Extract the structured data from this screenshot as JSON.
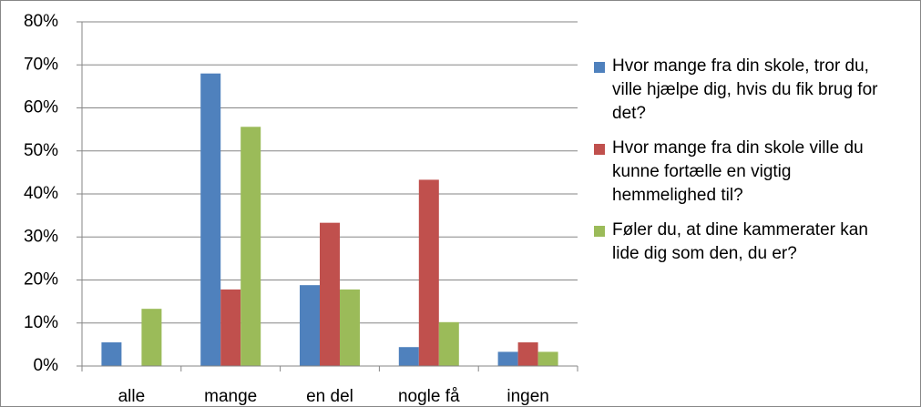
{
  "chart_data": {
    "type": "bar",
    "categories": [
      "alle",
      "mange",
      "en del",
      "nogle få",
      "ingen"
    ],
    "series": [
      {
        "name": "Hvor mange fra din skole, tror du, ville hjælpe dig, hvis du fik brug for det?",
        "color": "#4f81bd",
        "values": [
          5.5,
          68,
          18.8,
          4.4,
          3.3
        ]
      },
      {
        "name": "Hvor mange fra din skole ville du kunne fortælle en vigtig hemmelighed til?",
        "color": "#c0504d",
        "values": [
          0,
          17.8,
          33.3,
          43.3,
          5.5
        ]
      },
      {
        "name": "Føler du, at dine kammerater kan lide dig som den, du er?",
        "color": "#9bbb59",
        "values": [
          13.3,
          55.6,
          17.8,
          10.2,
          3.3
        ]
      }
    ],
    "ylim": [
      0,
      80
    ],
    "yticks": [
      {
        "value": 0,
        "label": "0%"
      },
      {
        "value": 10,
        "label": "10%"
      },
      {
        "value": 20,
        "label": "20%"
      },
      {
        "value": 30,
        "label": "30%"
      },
      {
        "value": 40,
        "label": "40%"
      },
      {
        "value": 50,
        "label": "50%"
      },
      {
        "value": 60,
        "label": "60%"
      },
      {
        "value": 70,
        "label": "70%"
      },
      {
        "value": 80,
        "label": "80%"
      }
    ],
    "grid": true,
    "legend": "right"
  }
}
